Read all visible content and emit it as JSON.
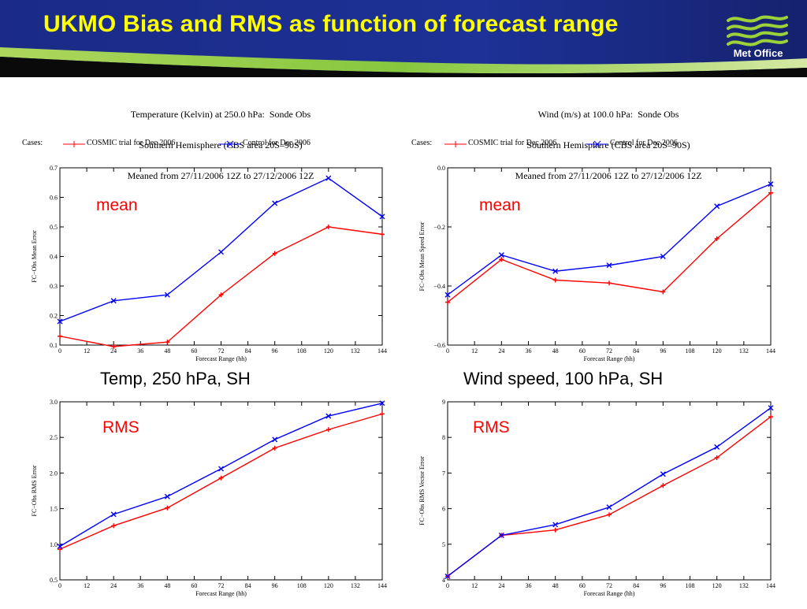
{
  "slide": {
    "title": "UKMO Bias and RMS as function of forecast range",
    "logo_text": "Met Office"
  },
  "colors": {
    "banner": "#1c2f8f",
    "banner_accent": "#9bd23a",
    "title": "#ffff00",
    "trial": "#ff0000",
    "control": "#0000ff",
    "tag": "#ff0000"
  },
  "headers": {
    "left": [
      "Temperature (Kelvin) at 250.0 hPa:  Sonde Obs",
      "Southern Hemisphere (CBS area 20S–90S)",
      "Meaned from 27/11/2006 12Z to 27/12/2006 12Z"
    ],
    "right": [
      "Wind (m/s) at 100.0 hPa:  Sonde Obs",
      "Southern Hemisphere (CBS area 20S–90S)",
      "Meaned from 27/11/2006 12Z to 27/12/2006 12Z"
    ]
  },
  "legend": {
    "cases_label": "Cases:",
    "trial": "COSMIC trial for Dec 2006",
    "control": "Control for Dec 2006"
  },
  "captions": {
    "left": "Temp, 250 hPa, SH",
    "right": "Wind speed, 100 hPa, SH"
  },
  "chart_data": [
    {
      "type": "line",
      "panel": "temp-mean",
      "tag": "mean",
      "xlabel": "Forecast Range (hh)",
      "ylabel": "FC−Obs Mean Error",
      "xlim": [
        0,
        144
      ],
      "ylim": [
        0.1,
        0.7
      ],
      "xticks": [
        0,
        12,
        24,
        36,
        48,
        60,
        72,
        84,
        96,
        108,
        120,
        132,
        144
      ],
      "yticks": [
        0.1,
        0.2,
        0.3,
        0.4,
        0.5,
        0.6,
        0.7
      ],
      "ytick_labels": [
        "0.1",
        "0.2",
        "0.3",
        "0.4",
        "0.5",
        "0.6",
        "0.7"
      ],
      "x": [
        0,
        24,
        48,
        72,
        96,
        120,
        144
      ],
      "series": [
        {
          "name": "COSMIC trial for Dec 2006",
          "color": "#ff0000",
          "marker": "plus",
          "values": [
            0.13,
            0.095,
            0.11,
            0.27,
            0.41,
            0.5,
            0.475
          ]
        },
        {
          "name": "Control for Dec 2006",
          "color": "#0000ff",
          "marker": "x",
          "values": [
            0.18,
            0.25,
            0.27,
            0.415,
            0.58,
            0.665,
            0.535
          ]
        }
      ]
    },
    {
      "type": "line",
      "panel": "wind-mean",
      "tag": "mean",
      "xlabel": "Forecast Range (hh)",
      "ylabel": "FC−Obs Mean Speed Error",
      "xlim": [
        0,
        144
      ],
      "ylim": [
        -0.6,
        0.0
      ],
      "xticks": [
        0,
        12,
        24,
        36,
        48,
        60,
        72,
        84,
        96,
        108,
        120,
        132,
        144
      ],
      "yticks": [
        -0.6,
        -0.4,
        -0.2,
        0.0
      ],
      "ytick_labels": [
        "−0.6",
        "−0.4",
        "−0.2",
        "0.0"
      ],
      "x": [
        0,
        24,
        48,
        72,
        96,
        120,
        144
      ],
      "series": [
        {
          "name": "COSMIC trial for Dec 2006",
          "color": "#ff0000",
          "marker": "plus",
          "values": [
            -0.455,
            -0.31,
            -0.38,
            -0.39,
            -0.42,
            -0.24,
            -0.085
          ]
        },
        {
          "name": "Control for Dec 2006",
          "color": "#0000ff",
          "marker": "x",
          "values": [
            -0.43,
            -0.295,
            -0.35,
            -0.33,
            -0.3,
            -0.13,
            -0.055
          ]
        }
      ]
    },
    {
      "type": "line",
      "panel": "temp-rms",
      "tag": "RMS",
      "xlabel": "Forecast Range (hh)",
      "ylabel": "FC−Obs RMS Error",
      "xlim": [
        0,
        144
      ],
      "ylim": [
        0.5,
        3.0
      ],
      "xticks": [
        0,
        12,
        24,
        36,
        48,
        60,
        72,
        84,
        96,
        108,
        120,
        132,
        144
      ],
      "yticks": [
        0.5,
        1.0,
        1.5,
        2.0,
        2.5,
        3.0
      ],
      "ytick_labels": [
        "0.5",
        "1.0",
        "1.5",
        "2.0",
        "2.5",
        "3.0"
      ],
      "x": [
        0,
        24,
        48,
        72,
        96,
        120,
        144
      ],
      "series": [
        {
          "name": "COSMIC trial for Dec 2006",
          "color": "#ff0000",
          "marker": "plus",
          "values": [
            0.93,
            1.26,
            1.51,
            1.93,
            2.35,
            2.61,
            2.83
          ]
        },
        {
          "name": "Control for Dec 2006",
          "color": "#0000ff",
          "marker": "x",
          "values": [
            0.97,
            1.42,
            1.67,
            2.06,
            2.47,
            2.8,
            2.98
          ]
        }
      ]
    },
    {
      "type": "line",
      "panel": "wind-rms",
      "tag": "RMS",
      "xlabel": "Forecast Range (hh)",
      "ylabel": "FC−Obs RMS Vector Error",
      "xlim": [
        0,
        144
      ],
      "ylim": [
        4,
        9
      ],
      "xticks": [
        0,
        12,
        24,
        36,
        48,
        60,
        72,
        84,
        96,
        108,
        120,
        132,
        144
      ],
      "yticks": [
        4,
        5,
        6,
        7,
        8,
        9
      ],
      "ytick_labels": [
        "4",
        "5",
        "6",
        "7",
        "8",
        "9"
      ],
      "x": [
        0,
        24,
        48,
        72,
        96,
        120,
        144
      ],
      "series": [
        {
          "name": "COSMIC trial for Dec 2006",
          "color": "#ff0000",
          "marker": "plus",
          "values": [
            4.1,
            5.25,
            5.4,
            5.83,
            6.65,
            7.43,
            8.58
          ]
        },
        {
          "name": "Control for Dec 2006",
          "color": "#0000ff",
          "marker": "x",
          "values": [
            4.1,
            5.25,
            5.55,
            6.04,
            6.97,
            7.73,
            8.83
          ]
        }
      ]
    }
  ]
}
